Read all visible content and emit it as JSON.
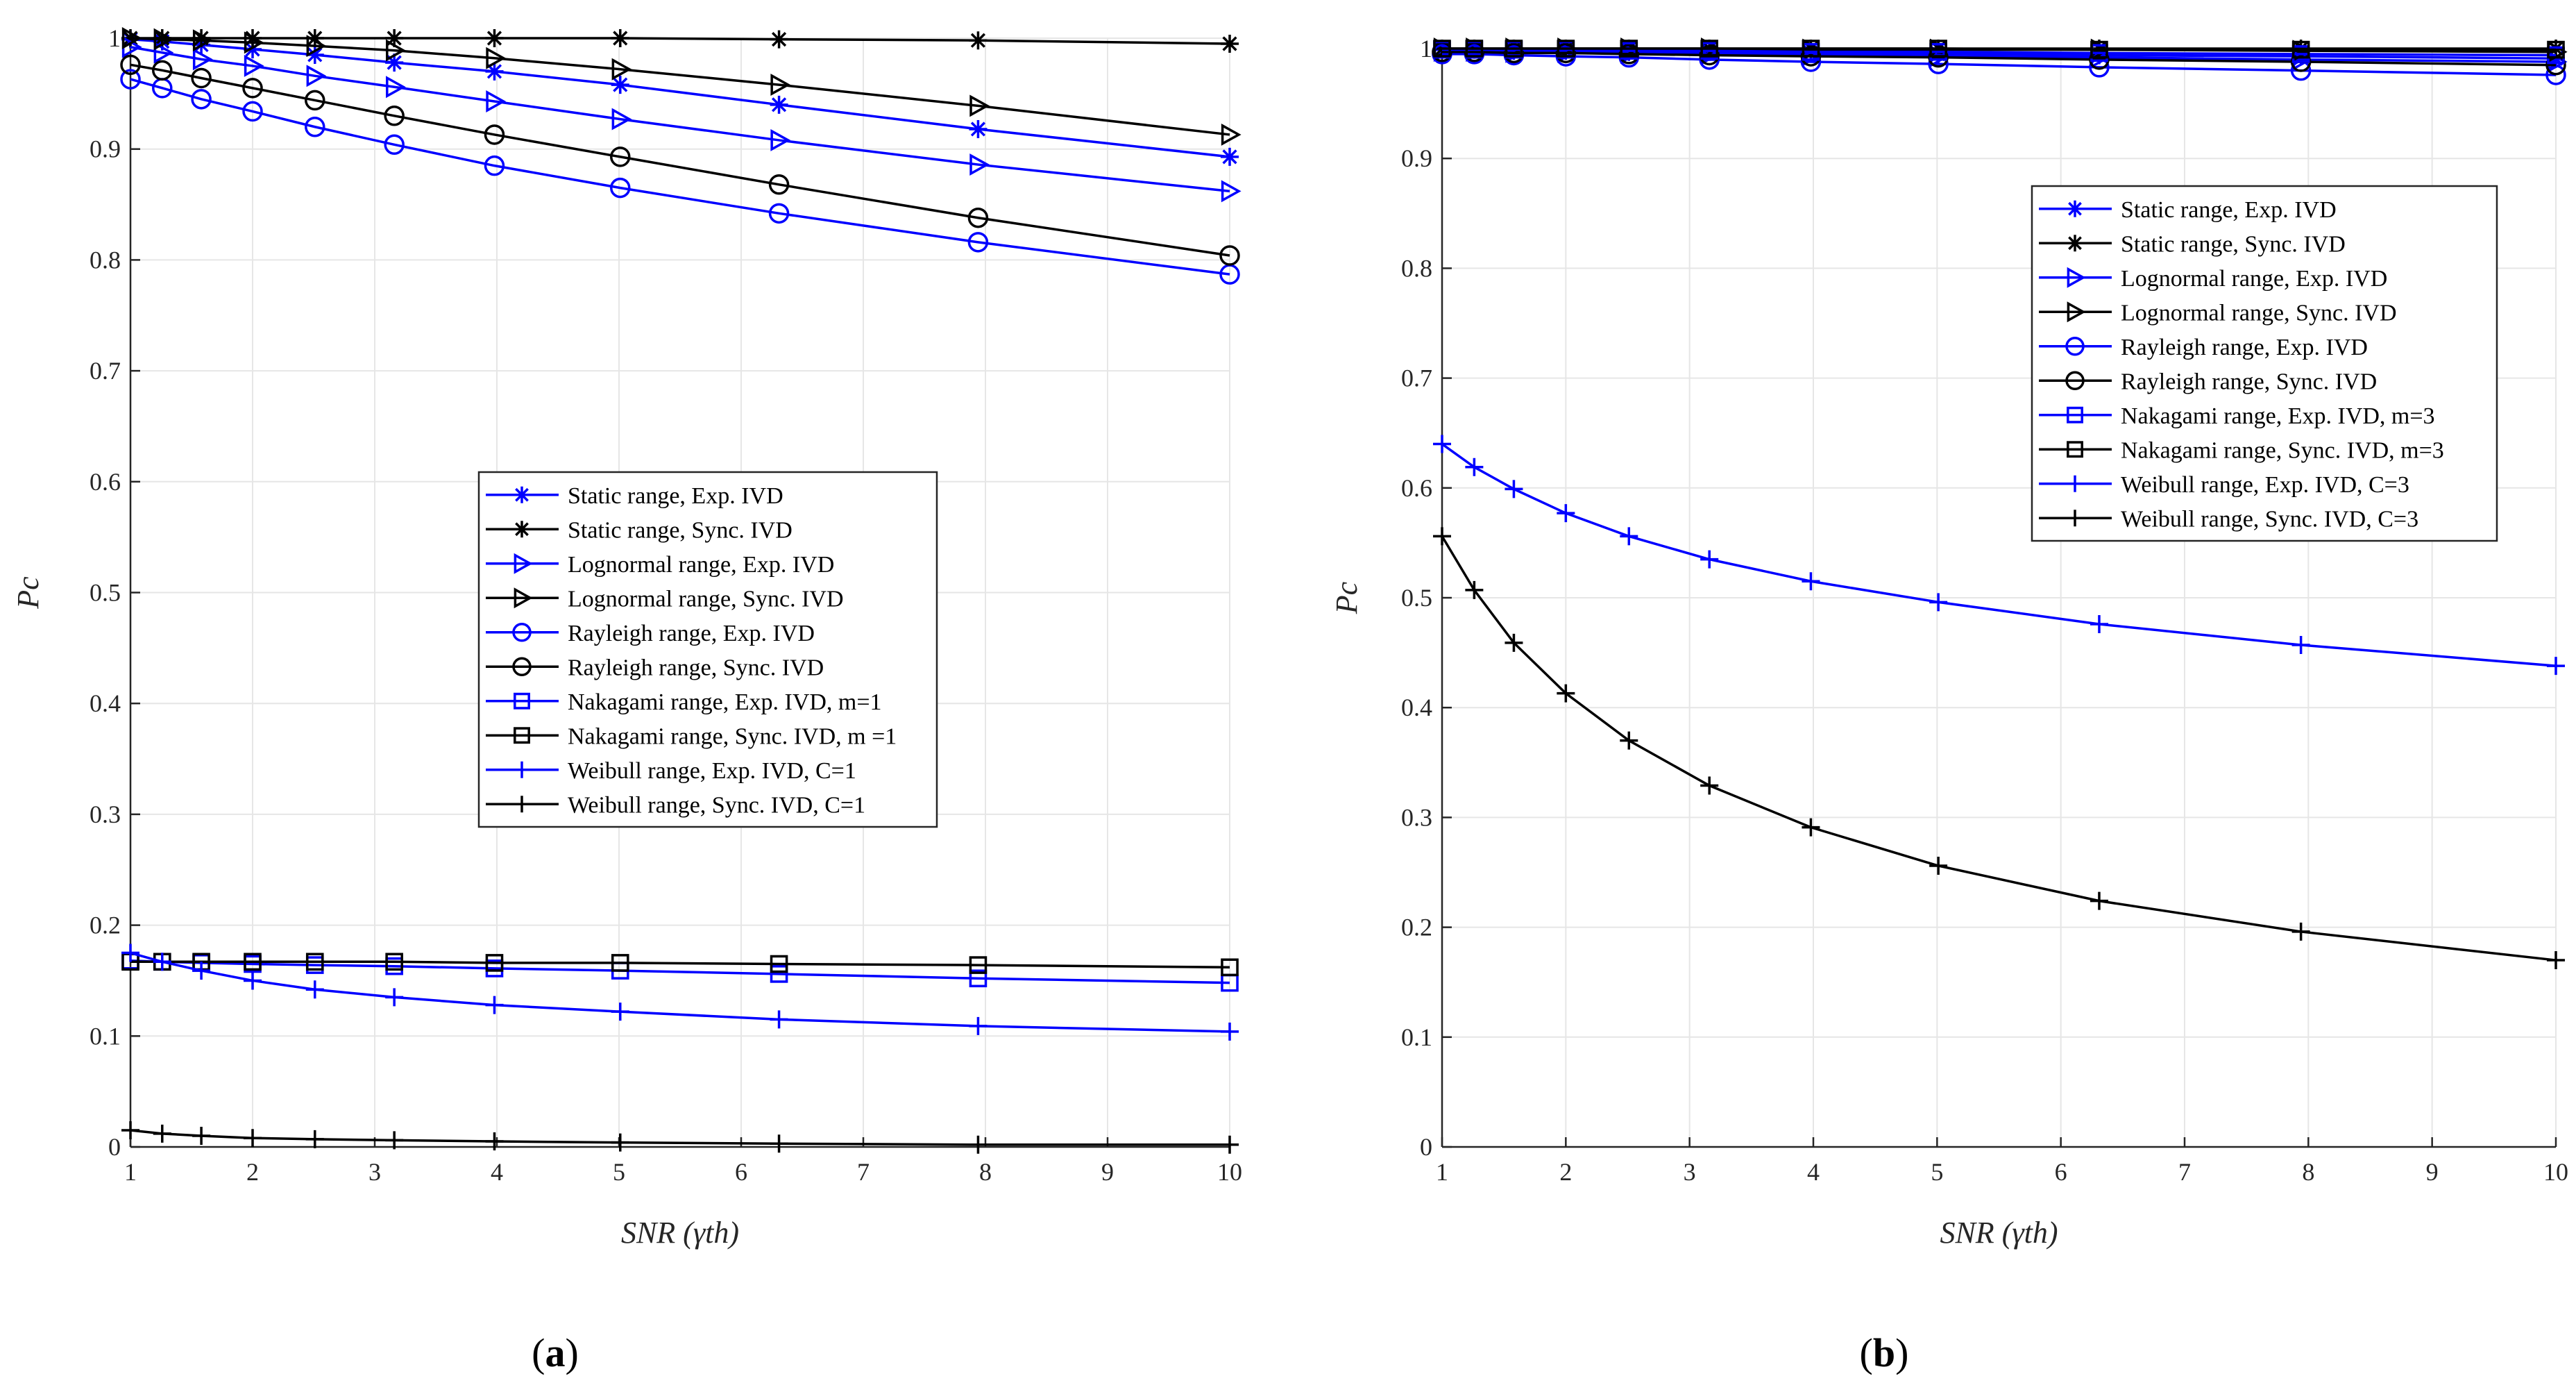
{
  "figure": {
    "subfigures": [
      "a",
      "b"
    ]
  },
  "chart_data": [
    {
      "id": "a",
      "type": "line",
      "caption": "(a)",
      "xlabel": "SNR (γth)",
      "ylabel": "Pc",
      "xlim": [
        1,
        10
      ],
      "ylim": [
        0,
        1
      ],
      "xticks": [
        1,
        2,
        3,
        4,
        5,
        6,
        7,
        8,
        9,
        10
      ],
      "yticks": [
        0,
        0.1,
        0.2,
        0.3,
        0.4,
        0.5,
        0.6,
        0.7,
        0.8,
        0.9,
        1
      ],
      "ytick_labels": [
        "0",
        "0.1",
        "0.2",
        "0.3",
        "0.4",
        "0.5",
        "0.6",
        "0.7",
        "0.8",
        "0.9",
        "1"
      ],
      "grid": true,
      "legend_position": "center-right",
      "x": [
        1,
        1.26,
        1.58,
        2,
        2.51,
        3.16,
        3.98,
        5.01,
        6.31,
        7.94,
        10
      ],
      "series": [
        {
          "name": "Static range, Exp. IVD",
          "color": "#0000ff",
          "marker": "star",
          "values": [
            0.999,
            0.997,
            0.994,
            0.99,
            0.985,
            0.978,
            0.97,
            0.958,
            0.94,
            0.918,
            0.893
          ]
        },
        {
          "name": "Static range, Sync. IVD",
          "color": "#000000",
          "marker": "star",
          "values": [
            1.0,
            1.0,
            1.0,
            1.0,
            1.0,
            1.0,
            1.0,
            1.0,
            0.999,
            0.998,
            0.995
          ]
        },
        {
          "name": "Lognormal range, Exp. IVD",
          "color": "#0000ff",
          "marker": "triangle-right",
          "values": [
            0.992,
            0.987,
            0.981,
            0.975,
            0.966,
            0.956,
            0.943,
            0.927,
            0.908,
            0.886,
            0.862
          ]
        },
        {
          "name": "Lognormal range, Sync. IVD",
          "color": "#000000",
          "marker": "triangle-right",
          "values": [
            1.0,
            0.999,
            0.998,
            0.996,
            0.993,
            0.989,
            0.982,
            0.972,
            0.958,
            0.939,
            0.913
          ]
        },
        {
          "name": "Rayleigh range, Exp. IVD",
          "color": "#0000ff",
          "marker": "circle",
          "values": [
            0.963,
            0.955,
            0.945,
            0.934,
            0.92,
            0.904,
            0.885,
            0.865,
            0.842,
            0.816,
            0.787
          ]
        },
        {
          "name": "Rayleigh range, Sync. IVD",
          "color": "#000000",
          "marker": "circle",
          "values": [
            0.976,
            0.971,
            0.964,
            0.955,
            0.944,
            0.93,
            0.913,
            0.893,
            0.868,
            0.838,
            0.804
          ]
        },
        {
          "name": "Nakagami range, Exp. IVD, m=1",
          "color": "#0000ff",
          "marker": "square",
          "values": [
            0.168,
            0.167,
            0.166,
            0.165,
            0.164,
            0.163,
            0.161,
            0.159,
            0.156,
            0.152,
            0.148
          ]
        },
        {
          "name": "Nakagami range, Sync. IVD, m =1",
          "color": "#000000",
          "marker": "square",
          "values": [
            0.167,
            0.167,
            0.167,
            0.167,
            0.167,
            0.167,
            0.166,
            0.166,
            0.165,
            0.164,
            0.162
          ]
        },
        {
          "name": "Weibull range, Exp. IVD, C=1",
          "color": "#0000ff",
          "marker": "plus",
          "values": [
            0.175,
            0.167,
            0.159,
            0.15,
            0.142,
            0.135,
            0.128,
            0.122,
            0.115,
            0.109,
            0.104
          ]
        },
        {
          "name": "Weibull range, Sync. IVD, C=1",
          "color": "#000000",
          "marker": "plus",
          "values": [
            0.015,
            0.012,
            0.01,
            0.008,
            0.007,
            0.006,
            0.005,
            0.004,
            0.003,
            0.002,
            0.002
          ]
        }
      ]
    },
    {
      "id": "b",
      "type": "line",
      "caption": "(b)",
      "xlabel": "SNR (γth)",
      "ylabel": "Pc",
      "xlim": [
        1,
        10
      ],
      "ylim": [
        0,
        1
      ],
      "xticks": [
        1,
        2,
        3,
        4,
        5,
        6,
        7,
        8,
        9,
        10
      ],
      "yticks": [
        0,
        0.1,
        0.2,
        0.3,
        0.4,
        0.5,
        0.6,
        0.7,
        0.8,
        0.9,
        1
      ],
      "ytick_labels": [
        "0",
        "0.1",
        "0.2",
        "0.3",
        "0.4",
        "0.5",
        "0.6",
        "0.7",
        "0.8",
        "0.9",
        "1"
      ],
      "grid": true,
      "legend_position": "upper-right",
      "x": [
        1,
        1.26,
        1.58,
        2,
        2.51,
        3.16,
        3.98,
        5.01,
        6.31,
        7.94,
        10
      ],
      "series": [
        {
          "name": "Static range, Exp. IVD",
          "color": "#0000ff",
          "marker": "star",
          "values": [
            0.999,
            0.999,
            0.998,
            0.998,
            0.997,
            0.997,
            0.996,
            0.995,
            0.994,
            0.993,
            0.991
          ]
        },
        {
          "name": "Static range, Sync. IVD",
          "color": "#000000",
          "marker": "star",
          "values": [
            1.0,
            1.0,
            1.0,
            1.0,
            1.0,
            1.0,
            1.0,
            1.0,
            1.0,
            1.0,
            1.0
          ]
        },
        {
          "name": "Lognormal range, Exp. IVD",
          "color": "#0000ff",
          "marker": "triangle-right",
          "values": [
            0.998,
            0.998,
            0.997,
            0.997,
            0.996,
            0.995,
            0.994,
            0.993,
            0.992,
            0.99,
            0.988
          ]
        },
        {
          "name": "Lognormal range, Sync. IVD",
          "color": "#000000",
          "marker": "triangle-right",
          "values": [
            1.0,
            1.0,
            1.0,
            1.0,
            1.0,
            1.0,
            0.999,
            0.999,
            0.999,
            0.998,
            0.997
          ]
        },
        {
          "name": "Rayleigh range, Exp. IVD",
          "color": "#0000ff",
          "marker": "circle",
          "values": [
            0.995,
            0.995,
            0.994,
            0.993,
            0.992,
            0.99,
            0.988,
            0.986,
            0.983,
            0.98,
            0.976
          ]
        },
        {
          "name": "Rayleigh range, Sync. IVD",
          "color": "#000000",
          "marker": "circle",
          "values": [
            0.997,
            0.997,
            0.996,
            0.996,
            0.995,
            0.994,
            0.993,
            0.992,
            0.99,
            0.988,
            0.985
          ]
        },
        {
          "name": "Nakagami range, Exp. IVD, m=3",
          "color": "#0000ff",
          "marker": "square",
          "values": [
            0.999,
            0.999,
            0.999,
            0.999,
            0.998,
            0.998,
            0.997,
            0.997,
            0.996,
            0.995,
            0.994
          ]
        },
        {
          "name": "Nakagami range, Sync. IVD, m=3",
          "color": "#000000",
          "marker": "square",
          "values": [
            1.0,
            1.0,
            1.0,
            1.0,
            1.0,
            1.0,
            1.0,
            1.0,
            0.999,
            0.999,
            0.999
          ]
        },
        {
          "name": "Weibull range, Exp. IVD, C=3",
          "color": "#0000ff",
          "marker": "plus",
          "values": [
            0.64,
            0.619,
            0.599,
            0.577,
            0.556,
            0.535,
            0.515,
            0.496,
            0.476,
            0.457,
            0.438
          ]
        },
        {
          "name": "Weibull range, Sync. IVD, C=3",
          "color": "#000000",
          "marker": "plus",
          "values": [
            0.556,
            0.507,
            0.459,
            0.413,
            0.37,
            0.329,
            0.291,
            0.256,
            0.224,
            0.196,
            0.17
          ]
        }
      ]
    }
  ]
}
